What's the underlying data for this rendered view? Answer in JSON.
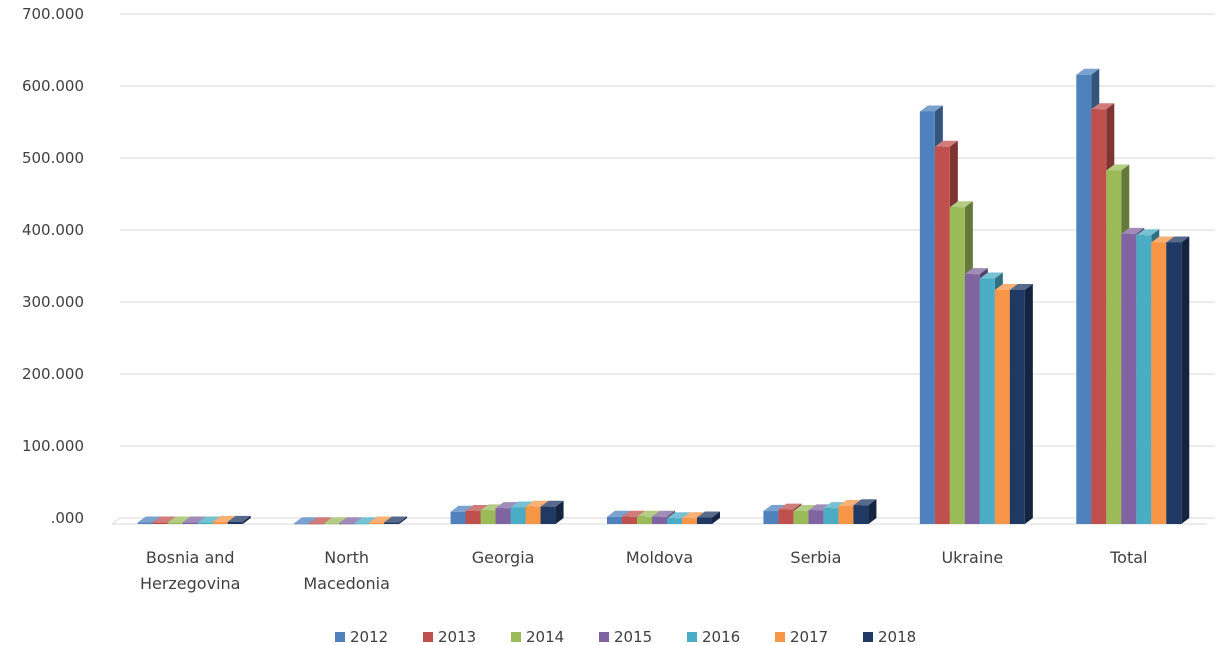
{
  "chart_data": {
    "type": "bar",
    "title": "",
    "xlabel": "",
    "ylabel": "",
    "ylim": [
      0,
      700000
    ],
    "yticks": [
      {
        "value": 0,
        "label": ".000"
      },
      {
        "value": 100000,
        "label": "100.000"
      },
      {
        "value": 200000,
        "label": "200.000"
      },
      {
        "value": 300000,
        "label": "300.000"
      },
      {
        "value": 400000,
        "label": "400.000"
      },
      {
        "value": 500000,
        "label": "500.000"
      },
      {
        "value": 600000,
        "label": "600.000"
      },
      {
        "value": 700000,
        "label": "700.000"
      }
    ],
    "categories": [
      [
        "Bosnia and",
        "Herzegovina"
      ],
      [
        "North",
        "Macedonia"
      ],
      [
        "Georgia"
      ],
      [
        "Moldova"
      ],
      [
        "Serbia"
      ],
      [
        "Ukraine"
      ],
      [
        "Total"
      ]
    ],
    "grid": true,
    "legend_position": "bottom",
    "series": [
      {
        "name": "2012",
        "color": "#4F81BD",
        "values": [
          2000,
          1000,
          17000,
          10000,
          18000,
          573000,
          624000
        ]
      },
      {
        "name": "2013",
        "color": "#C0504D",
        "values": [
          2000,
          1000,
          18000,
          10000,
          20000,
          524000,
          576000
        ]
      },
      {
        "name": "2014",
        "color": "#9BBB59",
        "values": [
          2000,
          1000,
          19000,
          10000,
          18000,
          440000,
          491000
        ]
      },
      {
        "name": "2015",
        "color": "#8064A2",
        "values": [
          2000,
          1000,
          22000,
          10000,
          19000,
          347000,
          403000
        ]
      },
      {
        "name": "2016",
        "color": "#4BACC6",
        "values": [
          2000,
          1000,
          23000,
          8000,
          22000,
          341000,
          401000
        ]
      },
      {
        "name": "2017",
        "color": "#F79646",
        "values": [
          3000,
          2000,
          24000,
          8000,
          25000,
          325000,
          391000
        ]
      },
      {
        "name": "2018",
        "color": "#1F3864",
        "values": [
          3000,
          2000,
          24000,
          9000,
          26000,
          325000,
          391000
        ]
      }
    ]
  }
}
